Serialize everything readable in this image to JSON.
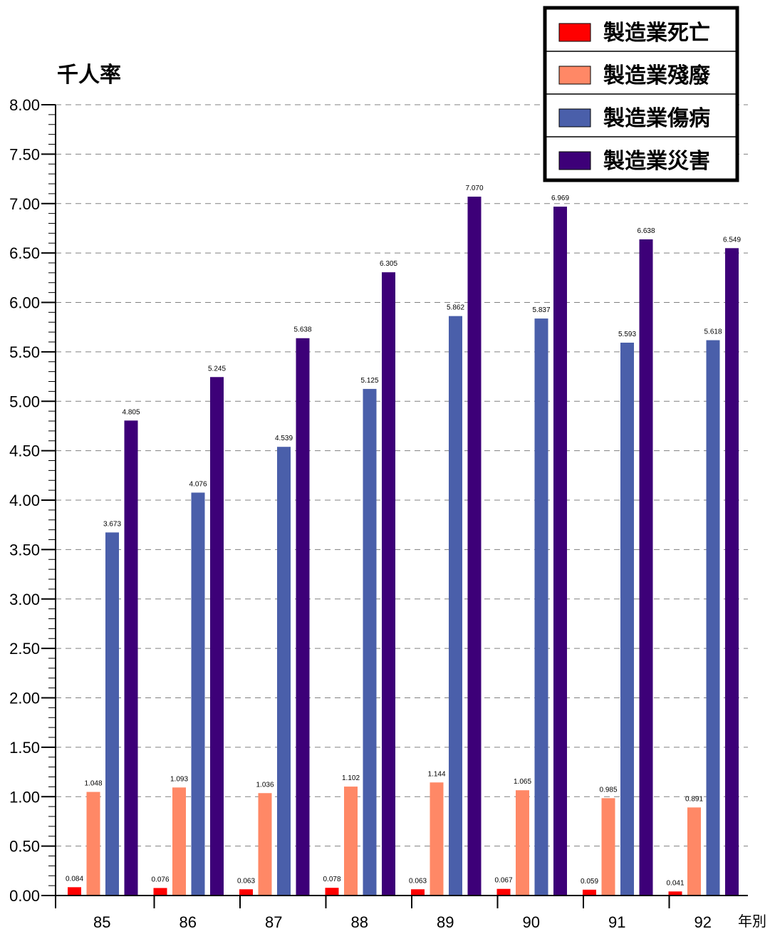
{
  "chart_data": {
    "type": "bar",
    "ylabel": "千人率",
    "xlabel": "年別",
    "ylim": [
      0,
      8
    ],
    "yticks": [
      "0.00",
      "0.50",
      "1.00",
      "1.50",
      "2.00",
      "2.50",
      "3.00",
      "3.50",
      "4.00",
      "4.50",
      "5.00",
      "5.50",
      "6.00",
      "6.50",
      "7.00",
      "7.50",
      "8.00"
    ],
    "grid": true,
    "legend_position": "top-right",
    "categories": [
      "85",
      "86",
      "87",
      "88",
      "89",
      "90",
      "91",
      "92"
    ],
    "series": [
      {
        "name": "製造業死亡",
        "color": "#ff0000",
        "values": [
          0.084,
          0.076,
          0.063,
          0.078,
          0.063,
          0.067,
          0.059,
          0.041
        ],
        "labels": [
          "0.084",
          "0.076",
          "0.063",
          "0.078",
          "0.063",
          "0.067",
          "0.059",
          "0.041"
        ]
      },
      {
        "name": "製造業殘廢",
        "color": "#ff8866",
        "values": [
          1.048,
          1.093,
          1.036,
          1.102,
          1.144,
          1.065,
          0.985,
          0.891
        ],
        "labels": [
          "1.048",
          "1.093",
          "1.036",
          "1.102",
          "1.144",
          "1.065",
          "0.985",
          "0.891"
        ]
      },
      {
        "name": "製造業傷病",
        "color": "#4a5faa",
        "values": [
          3.673,
          4.076,
          4.539,
          5.125,
          5.862,
          5.837,
          5.593,
          5.618
        ],
        "labels": [
          "3.673",
          "4.076",
          "4.539",
          "5.125",
          "5.862",
          "5.837",
          "5.593",
          "5.618"
        ]
      },
      {
        "name": "製造業災害",
        "color": "#3d0078",
        "values": [
          4.805,
          5.245,
          5.638,
          6.305,
          7.07,
          6.969,
          6.638,
          6.549
        ],
        "labels": [
          "4.805",
          "5.245",
          "5.638",
          "6.305",
          "7.070",
          "6.969",
          "6.638",
          "6.549"
        ]
      }
    ]
  }
}
